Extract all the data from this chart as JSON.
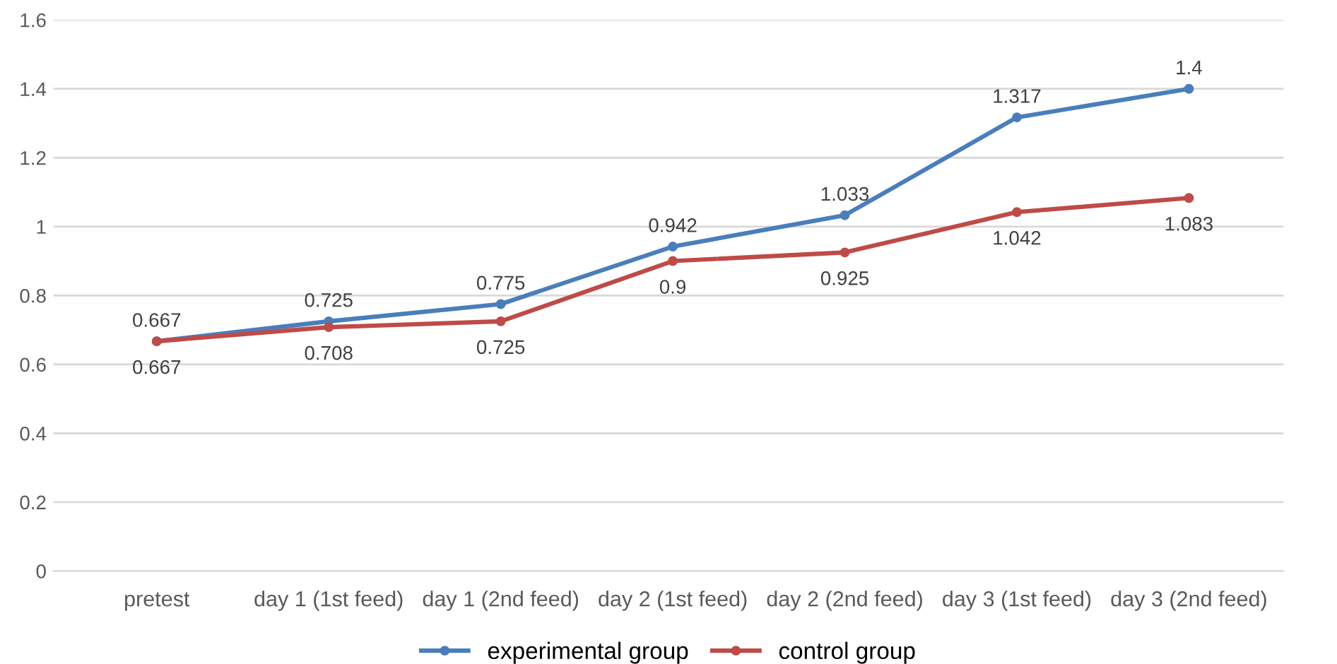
{
  "chart_data": {
    "type": "line",
    "categories": [
      "pretest",
      "day 1 (1st feed)",
      "day 1 (2nd feed)",
      "day 2 (1st feed)",
      "day 2 (2nd feed)",
      "day 3 (1st feed)",
      "day 3 (2nd feed)"
    ],
    "series": [
      {
        "name": "experimental group",
        "color": "#4a7ebb",
        "values": [
          0.667,
          0.725,
          0.775,
          0.942,
          1.033,
          1.317,
          1.4
        ]
      },
      {
        "name": "control group",
        "color": "#be4b48",
        "values": [
          0.667,
          0.708,
          0.725,
          0.9,
          0.925,
          1.042,
          1.083
        ]
      }
    ],
    "ylim": [
      0,
      1.6
    ],
    "yticks": [
      0,
      0.2,
      0.4,
      0.6,
      0.8,
      1,
      1.2,
      1.4,
      1.6
    ],
    "grid": "y",
    "legend": "bottom",
    "marker": "circle",
    "line_style": "solid",
    "data_labels": true
  }
}
